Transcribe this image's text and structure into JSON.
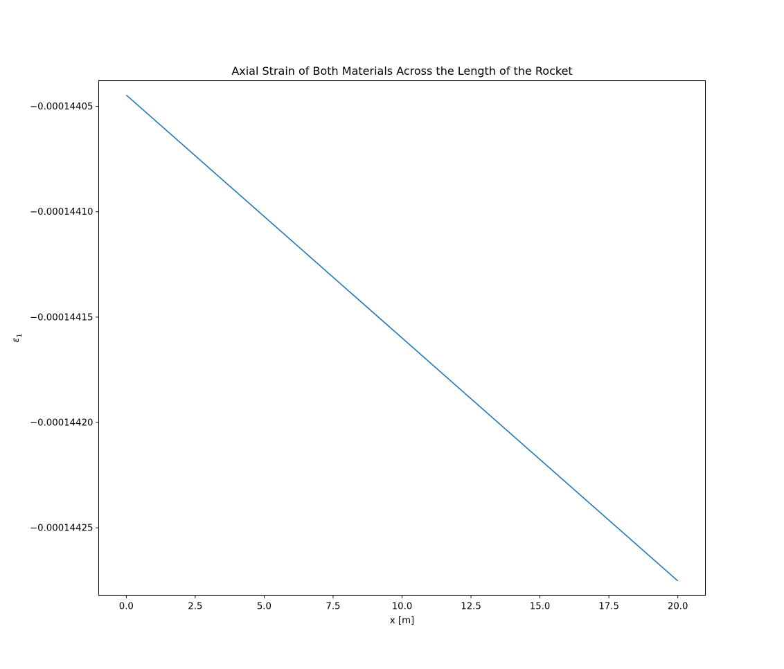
{
  "chart_data": {
    "type": "line",
    "title": "Axial Strain of Both Materials Across the Length of the Rocket",
    "xlabel": "x [m]",
    "ylabel_symbol": "ε",
    "ylabel_subscript": "1",
    "xlim": [
      -1.0,
      21.0
    ],
    "ylim": [
      -0.000144282,
      -0.0001440378
    ],
    "x_ticks": [
      0.0,
      2.5,
      5.0,
      7.5,
      10.0,
      12.5,
      15.0,
      17.5,
      20.0
    ],
    "x_tick_labels": [
      "0.0",
      "2.5",
      "5.0",
      "7.5",
      "10.0",
      "12.5",
      "15.0",
      "17.5",
      "20.0"
    ],
    "y_ticks": [
      -0.00014405,
      -0.0001441,
      -0.00014415,
      -0.0001442,
      -0.00014425
    ],
    "y_tick_labels": [
      "−0.00014405",
      "−0.00014410",
      "−0.00014415",
      "−0.00014420",
      "−0.00014425"
    ],
    "grid": false,
    "series": [
      {
        "color": "#1f77b4",
        "x": [
          0.0,
          20.0
        ],
        "y": [
          -0.0001440446,
          -0.0001442752
        ]
      }
    ]
  }
}
